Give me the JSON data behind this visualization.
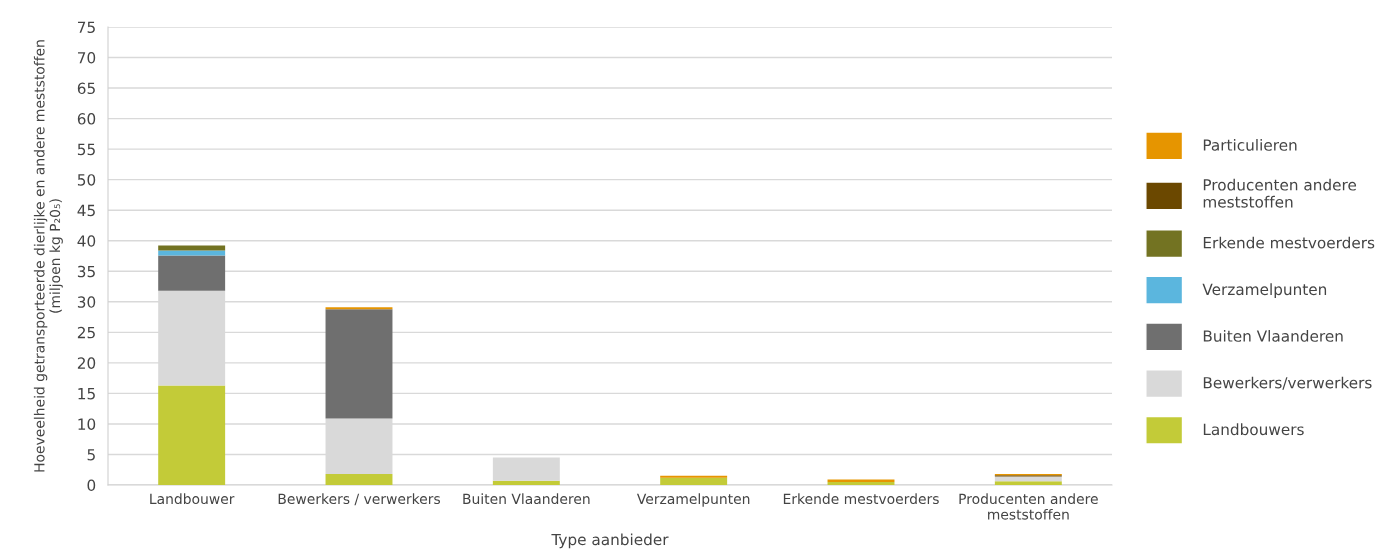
{
  "chart_data": {
    "type": "bar",
    "stacked": true,
    "xlabel": "Type aanbieder",
    "ylabel": "Hoeveelheid getransporteerde dierlijke en andere meststoffen\n(miljoen kg P₂0₅)",
    "categories": [
      "Landbouwer",
      "Bewerkers / verwerkers",
      "Buiten Vlaanderen",
      "Verzamelpunten",
      "Erkende mestvoerders",
      "Producenten andere\nmeststoffen"
    ],
    "series": [
      {
        "name": "Landbouwers",
        "color": "#c3cb38",
        "values": [
          16.3,
          1.8,
          0.7,
          1.2,
          0.5,
          0.6
        ]
      },
      {
        "name": "Bewerkers/verwerkers",
        "color": "#d9d9d9",
        "values": [
          15.5,
          9.1,
          3.8,
          null,
          null,
          0.8
        ]
      },
      {
        "name": "Buiten Vlaanderen",
        "color": "#6f6f6f",
        "values": [
          5.8,
          17.9,
          null,
          null,
          null,
          null
        ]
      },
      {
        "name": "Verzamelpunten",
        "color": "#5bb6de",
        "values": [
          0.8,
          null,
          null,
          null,
          null,
          null
        ]
      },
      {
        "name": "Erkende mestvoerders",
        "color": "#737322",
        "values": [
          0.8,
          null,
          null,
          null,
          null,
          null
        ]
      },
      {
        "name": "Producenten andere\nmeststoffen",
        "color": "#6b4800",
        "values": [
          null,
          null,
          null,
          null,
          null,
          0.2
        ]
      },
      {
        "name": "Particulieren",
        "color": "#e69500",
        "values": [
          null,
          0.3,
          null,
          0.3,
          0.4,
          0.2
        ]
      }
    ],
    "ylim": [
      0,
      75
    ],
    "yticks": [
      0,
      5,
      10,
      15,
      20,
      25,
      30,
      35,
      40,
      45,
      50,
      55,
      60,
      65,
      70,
      75
    ],
    "grid": "y",
    "legend": "right"
  }
}
